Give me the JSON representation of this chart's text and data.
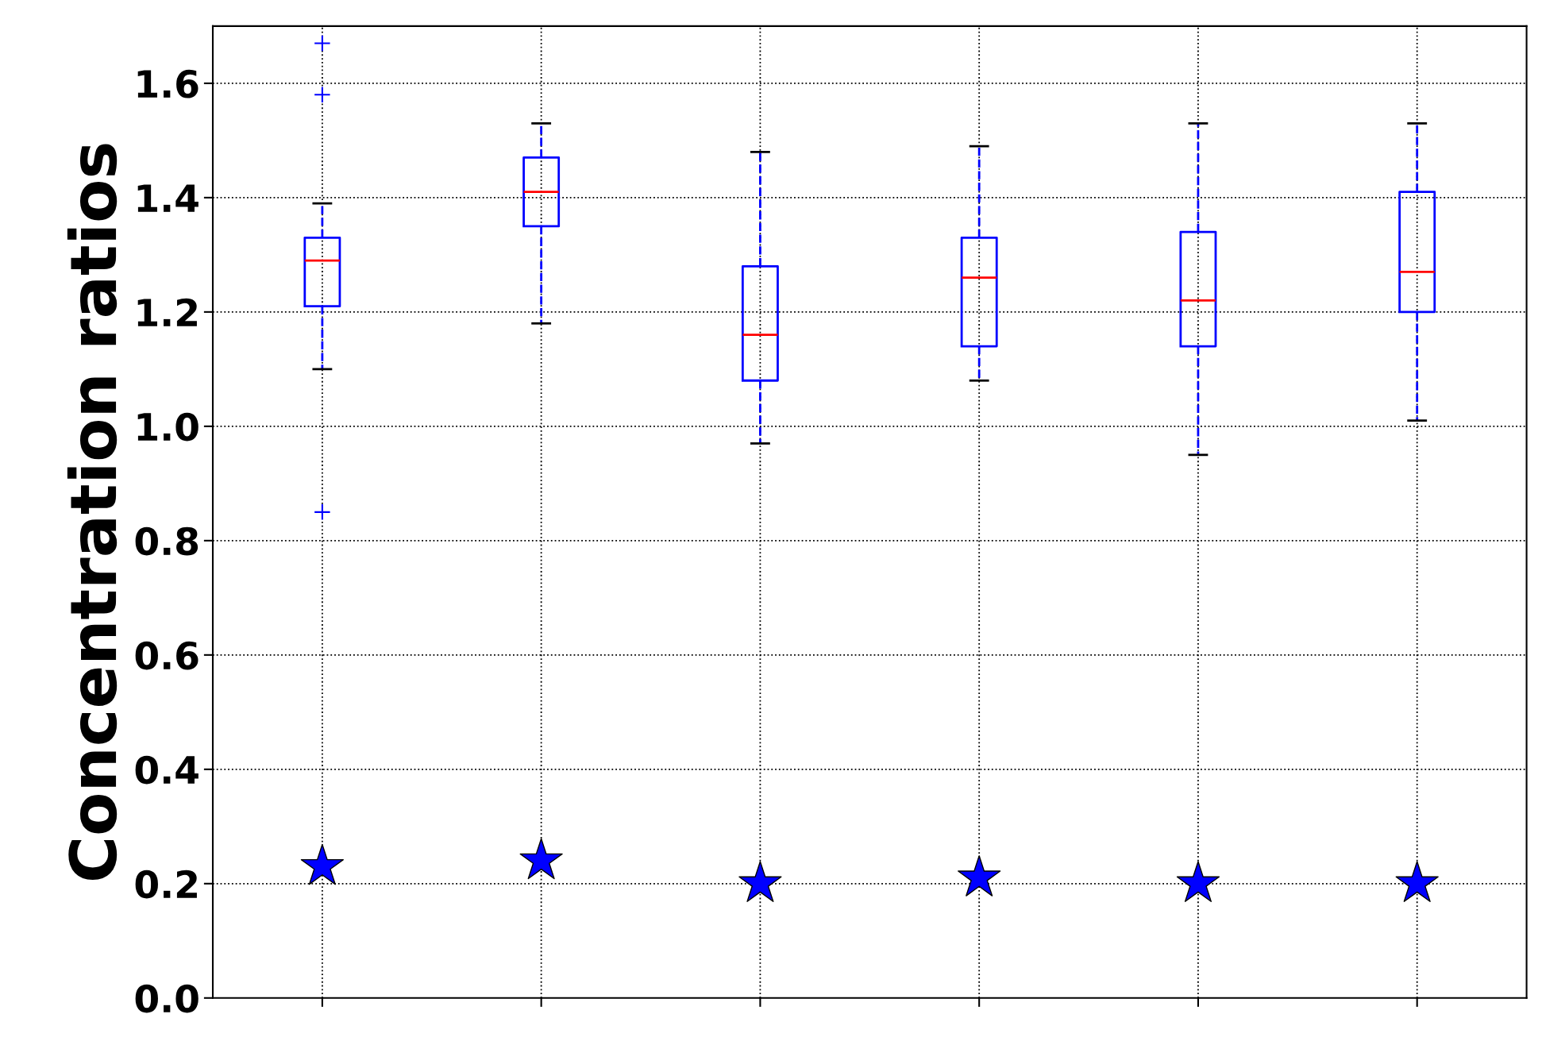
{
  "chart_data": {
    "type": "box",
    "ylabel": "Concentration ratios",
    "categories": [
      null,
      null,
      null,
      null,
      null,
      null
    ],
    "ylim": [
      0,
      1.7
    ],
    "yticks": [
      {
        "value": 0,
        "label": "0.0"
      },
      {
        "value": 0.2,
        "label": "0.2"
      },
      {
        "value": 0.4,
        "label": "0.4"
      },
      {
        "value": 0.6,
        "label": "0.6"
      },
      {
        "value": 0.8,
        "label": "0.8"
      },
      {
        "value": 1.0,
        "label": "1.0"
      },
      {
        "value": 1.2,
        "label": "1.2"
      },
      {
        "value": 1.4,
        "label": "1.4"
      },
      {
        "value": 1.6,
        "label": "1.6"
      }
    ],
    "grid": true,
    "series": [
      {
        "color": "#0000ff",
        "boxes": [
          {
            "low": 1.1,
            "q1": 1.21,
            "median": 1.29,
            "q3": 1.33,
            "high": 1.39,
            "outliers": [
              1.67,
              1.58,
              0.85
            ]
          },
          {
            "low": 1.18,
            "q1": 1.35,
            "median": 1.41,
            "q3": 1.47,
            "high": 1.53
          },
          {
            "low": 0.97,
            "q1": 1.08,
            "median": 1.16,
            "q3": 1.28,
            "high": 1.48
          },
          {
            "low": 1.08,
            "q1": 1.14,
            "median": 1.26,
            "q3": 1.33,
            "high": 1.49
          },
          {
            "low": 0.95,
            "q1": 1.14,
            "median": 1.22,
            "q3": 1.34,
            "high": 1.53
          },
          {
            "low": 1.01,
            "q1": 1.2,
            "median": 1.27,
            "q3": 1.41,
            "high": 1.53
          }
        ]
      },
      {
        "type": "scatter",
        "color": "#0000ff",
        "marker": "star",
        "values": [
          0.23,
          0.24,
          0.2,
          0.21,
          0.2,
          0.2
        ]
      }
    ]
  }
}
